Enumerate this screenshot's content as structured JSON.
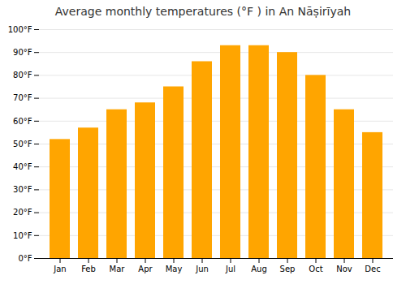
{
  "chart_data": {
    "type": "bar",
    "title": "Average monthly temperatures (°F ) in An Nāṣirīyah",
    "categories": [
      "Jan",
      "Feb",
      "Mar",
      "Apr",
      "May",
      "Jun",
      "Jul",
      "Aug",
      "Sep",
      "Oct",
      "Nov",
      "Dec"
    ],
    "values": [
      52,
      57,
      65,
      68,
      75,
      86,
      93,
      93,
      90,
      80,
      65,
      55
    ],
    "color": "#FFA500",
    "ylim": [
      0,
      100
    ],
    "yticks": [
      {
        "value": 0,
        "label": "0°F"
      },
      {
        "value": 10,
        "label": "10°F"
      },
      {
        "value": 20,
        "label": "20°F"
      },
      {
        "value": 30,
        "label": "30°F"
      },
      {
        "value": 40,
        "label": "40°F"
      },
      {
        "value": 50,
        "label": "50°F"
      },
      {
        "value": 60,
        "label": "60°F"
      },
      {
        "value": 70,
        "label": "70°F"
      },
      {
        "value": 80,
        "label": "80°F"
      },
      {
        "value": 90,
        "label": "90°F"
      },
      {
        "value": 100,
        "label": "100°F"
      }
    ],
    "grid": true
  }
}
